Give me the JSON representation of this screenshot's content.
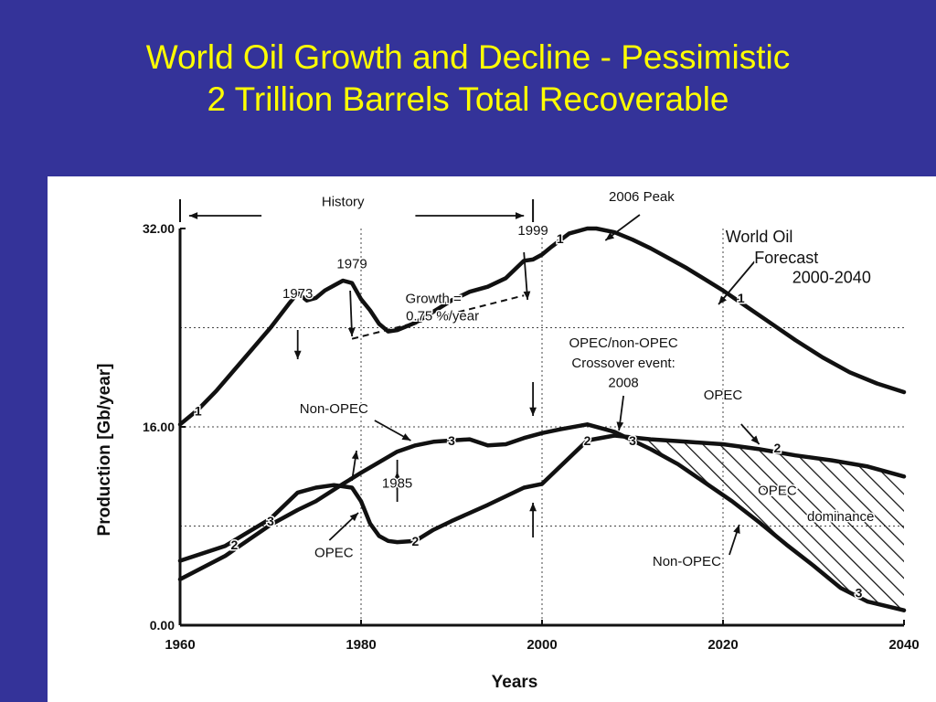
{
  "slide": {
    "title_line1": "World Oil Growth and Decline - Pessimistic",
    "title_line2": "2 Trillion Barrels Total Recoverable",
    "background_color": "#343399",
    "title_color": "#ffff00"
  },
  "chart_data": {
    "type": "line",
    "xlabel": "Years",
    "ylabel": "Production  [Gb/year]",
    "xlim": [
      1960,
      2040
    ],
    "ylim": [
      0,
      32
    ],
    "x_ticks": [
      "1960",
      "1980",
      "2000",
      "2020",
      "2040"
    ],
    "y_ticks": [
      "0.00",
      "16.00",
      "32.00"
    ],
    "grid": true,
    "series": [
      {
        "name": "1",
        "x": [
          1960,
          1962,
          1964,
          1966,
          1968,
          1970,
          1972,
          1973,
          1974,
          1975,
          1976,
          1977,
          1978,
          1979,
          1980,
          1981,
          1982,
          1983,
          1984,
          1986,
          1988,
          1990,
          1992,
          1994,
          1996,
          1997,
          1998,
          1999,
          2000,
          2001,
          2003,
          2005,
          2006,
          2008,
          2010,
          2012,
          2014,
          2016,
          2018,
          2020,
          2022,
          2025,
          2028,
          2031,
          2034,
          2037,
          2040
        ],
        "y": [
          16.2,
          17.4,
          18.9,
          20.6,
          22.3,
          24.0,
          25.9,
          26.8,
          26.2,
          26.4,
          27.0,
          27.4,
          27.8,
          27.6,
          26.3,
          25.4,
          24.3,
          23.7,
          23.8,
          24.4,
          25.3,
          26.2,
          26.9,
          27.3,
          28.0,
          28.7,
          29.4,
          29.5,
          29.9,
          30.5,
          31.6,
          32.0,
          32.0,
          31.7,
          31.1,
          30.4,
          29.6,
          28.8,
          27.9,
          27.0,
          26.0,
          24.5,
          23.0,
          21.6,
          20.4,
          19.5,
          18.8
        ]
      },
      {
        "name": "2",
        "x": [
          1960,
          1965,
          1970,
          1973,
          1975,
          1977,
          1979,
          1980,
          1981,
          1982,
          1983,
          1984,
          1986,
          1988,
          1990,
          1994,
          1998,
          2000,
          2002,
          2005,
          2008,
          2012,
          2016,
          2020,
          2024,
          2028,
          2032,
          2036,
          2040
        ],
        "y": [
          5.2,
          6.4,
          8.6,
          10.7,
          11.1,
          11.3,
          11.1,
          10.0,
          8.2,
          7.2,
          6.8,
          6.7,
          6.8,
          7.7,
          8.4,
          9.7,
          11.1,
          11.4,
          12.8,
          14.9,
          15.3,
          15.0,
          14.8,
          14.6,
          14.2,
          13.7,
          13.3,
          12.8,
          12.0
        ]
      },
      {
        "name": "3",
        "x": [
          1960,
          1965,
          1970,
          1973,
          1975,
          1978,
          1980,
          1984,
          1986,
          1988,
          1990,
          1992,
          1994,
          1996,
          1998,
          2000,
          2002,
          2005,
          2008,
          2010,
          2012,
          2015,
          2018,
          2021,
          2024,
          2027,
          2030,
          2033,
          2036,
          2040
        ],
        "y": [
          3.7,
          5.6,
          8.1,
          9.3,
          10.0,
          11.4,
          12.3,
          14.0,
          14.5,
          14.8,
          14.9,
          15.0,
          14.5,
          14.6,
          15.1,
          15.5,
          15.8,
          16.2,
          15.6,
          14.9,
          14.2,
          13.0,
          11.5,
          10.0,
          8.3,
          6.5,
          4.8,
          3.0,
          1.9,
          1.2
        ]
      }
    ],
    "dashed_trend": {
      "label": "Growth =\n0.75 %/year",
      "x": [
        1979,
        1998
      ],
      "y": [
        23.1,
        26.6
      ]
    },
    "shaded_region": {
      "label": "OPEC dominance",
      "x_range": [
        2008,
        2040
      ],
      "upper_series": "2",
      "lower_series": "3"
    },
    "annotations": [
      {
        "text": "History",
        "x": 1978,
        "y": 33.8
      },
      {
        "text": "2006 Peak",
        "x": 2011,
        "y": 34.2
      },
      {
        "text": "1999",
        "x": 1999,
        "y": 31.5
      },
      {
        "text": "1979",
        "x": 1979,
        "y": 28.8
      },
      {
        "text": "1973",
        "x": 1973,
        "y": 26.4
      },
      {
        "text": "Growth =",
        "x": 1988,
        "y": 26.0
      },
      {
        "text": "0.75 %/year",
        "x": 1989,
        "y": 24.6
      },
      {
        "text": "World Oil",
        "x": 2024,
        "y": 30.9
      },
      {
        "text": "Forecast",
        "x": 2027,
        "y": 29.2
      },
      {
        "text": "2000-2040",
        "x": 2032,
        "y": 27.6
      },
      {
        "text": "OPEC/non-OPEC",
        "x": 2009,
        "y": 22.4
      },
      {
        "text": "Crossover event:",
        "x": 2009,
        "y": 20.8
      },
      {
        "text": "2008",
        "x": 2009,
        "y": 19.2
      },
      {
        "text": "Non-OPEC",
        "x": 1977,
        "y": 17.1
      },
      {
        "text": "1985",
        "x": 1984,
        "y": 11.1
      },
      {
        "text": "OPEC",
        "x": 1977,
        "y": 5.5
      },
      {
        "text": "OPEC",
        "x": 2020,
        "y": 18.2
      },
      {
        "text": "OPEC",
        "x": 2026,
        "y": 10.5
      },
      {
        "text": "dominance",
        "x": 2033,
        "y": 8.4
      },
      {
        "text": "Non-OPEC",
        "x": 2016,
        "y": 4.8
      }
    ],
    "series_markers": [
      {
        "label": "1",
        "x": 1962,
        "y": 17.3
      },
      {
        "label": "1",
        "x": 2002,
        "y": 31.2
      },
      {
        "label": "1",
        "x": 2022,
        "y": 26.4
      },
      {
        "label": "2",
        "x": 1966,
        "y": 6.5
      },
      {
        "label": "2",
        "x": 1986,
        "y": 6.8
      },
      {
        "label": "2",
        "x": 2005,
        "y": 14.9
      },
      {
        "label": "2",
        "x": 2026,
        "y": 14.3
      },
      {
        "label": "3",
        "x": 1970,
        "y": 8.4
      },
      {
        "label": "3",
        "x": 1990,
        "y": 14.9
      },
      {
        "label": "3",
        "x": 2010,
        "y": 14.9
      },
      {
        "label": "3",
        "x": 2035,
        "y": 2.6
      }
    ]
  }
}
